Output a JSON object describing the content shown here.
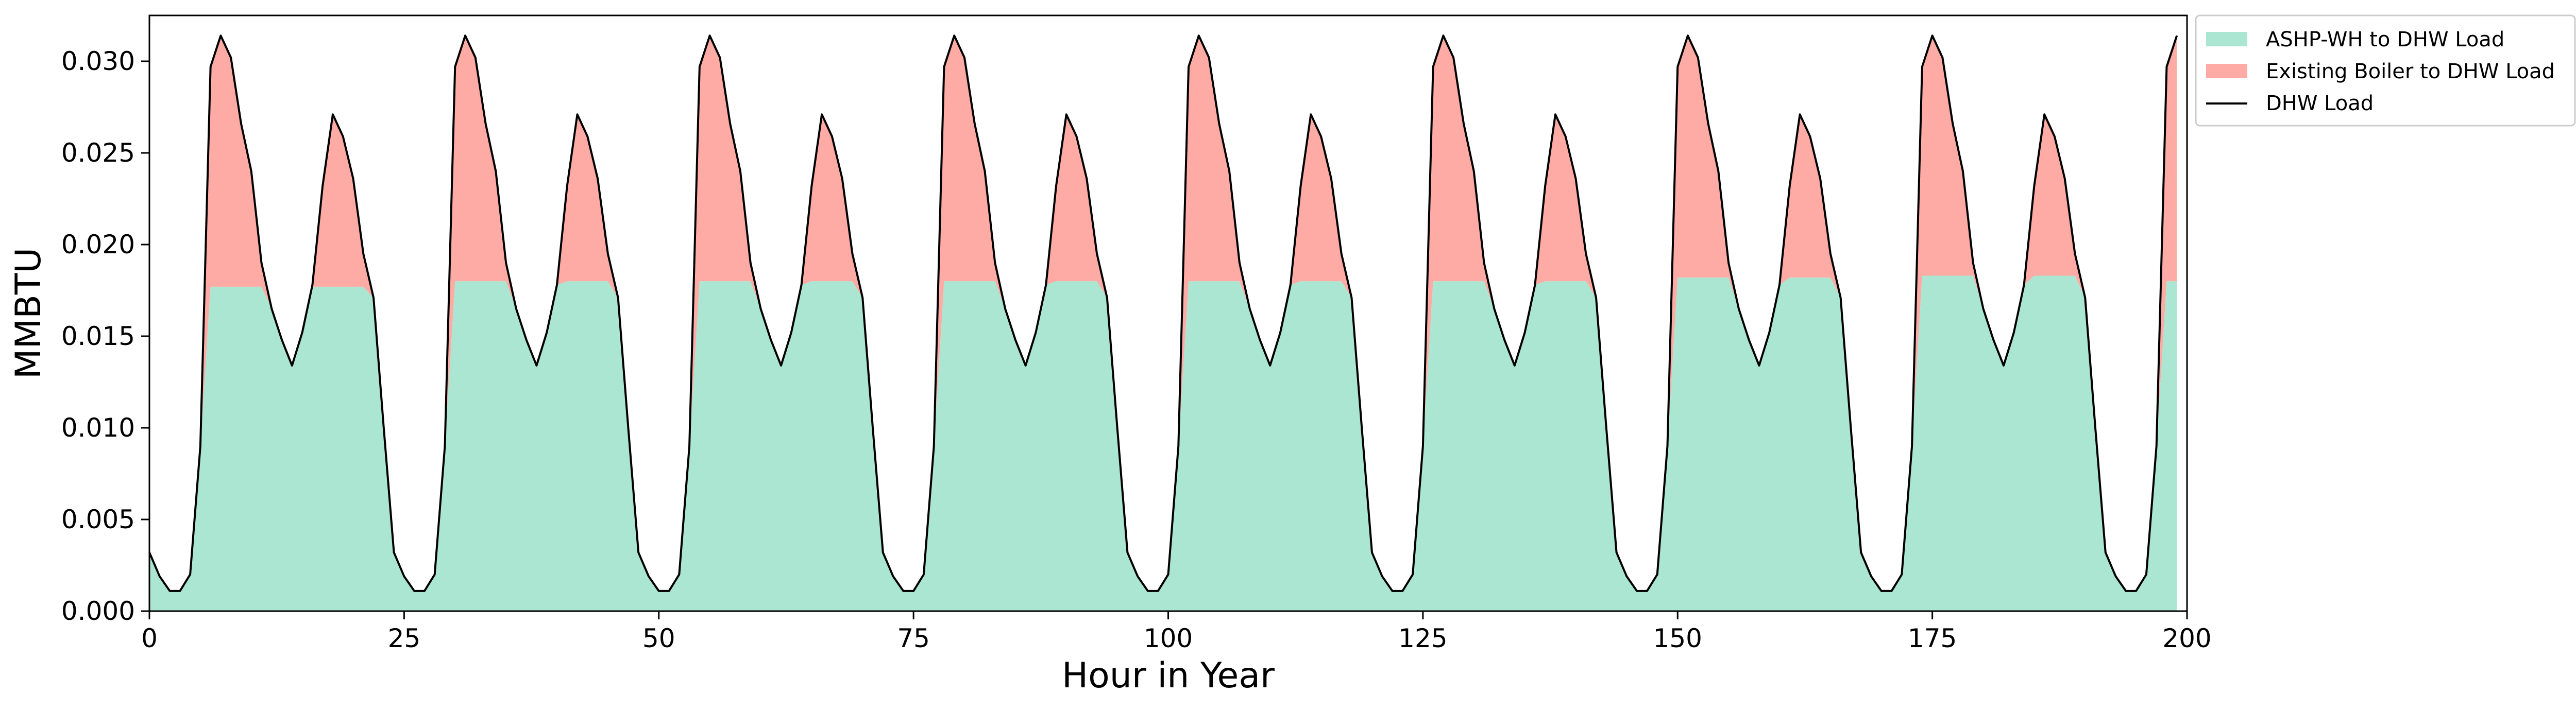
{
  "chart_data": {
    "type": "area",
    "title": "",
    "xlabel": "Hour in Year",
    "ylabel": "MMBTU",
    "xlim": [
      0,
      200
    ],
    "ylim": [
      0,
      0.0325
    ],
    "xticks": [
      0,
      25,
      50,
      75,
      100,
      125,
      150,
      175,
      200
    ],
    "yticks": [
      0.0,
      0.005,
      0.01,
      0.015,
      0.02,
      0.025,
      0.03
    ],
    "ytick_labels": [
      "0.000",
      "0.005",
      "0.010",
      "0.015",
      "0.020",
      "0.025",
      "0.030"
    ],
    "grid": false,
    "legend_position": "outside-upper-right",
    "stacked": true,
    "colors": {
      "ashp": "#aae6d1",
      "boiler": "#fdaba4",
      "load": "#000000"
    },
    "daily_profile_hours": [
      0,
      1,
      2,
      3,
      4,
      5,
      6,
      7,
      8,
      9,
      10,
      11,
      12,
      13,
      14,
      15,
      16,
      17,
      18,
      19,
      20,
      21,
      22,
      23
    ],
    "daily_load_profile": [
      0.0032,
      0.0019,
      0.0011,
      0.0011,
      0.002,
      0.009,
      0.0297,
      0.0314,
      0.0302,
      0.0266,
      0.024,
      0.019,
      0.0165,
      0.0148,
      0.0134,
      0.0152,
      0.0178,
      0.0232,
      0.0271,
      0.0259,
      0.0236,
      0.0195,
      0.0171,
      0.01
    ],
    "days_shown": 9,
    "hours_shown": 200,
    "series": [
      {
        "name": "ASHP-WH to DHW Load",
        "kind": "area",
        "note_cap": 0.018,
        "daily_caps": [
          0.0177,
          0.018,
          0.018,
          0.018,
          0.018,
          0.018,
          0.0182,
          0.0183,
          0.018
        ]
      },
      {
        "name": "Existing Boiler to DHW Load",
        "kind": "area-stacked"
      },
      {
        "name": "DHW Load",
        "kind": "line"
      }
    ]
  }
}
